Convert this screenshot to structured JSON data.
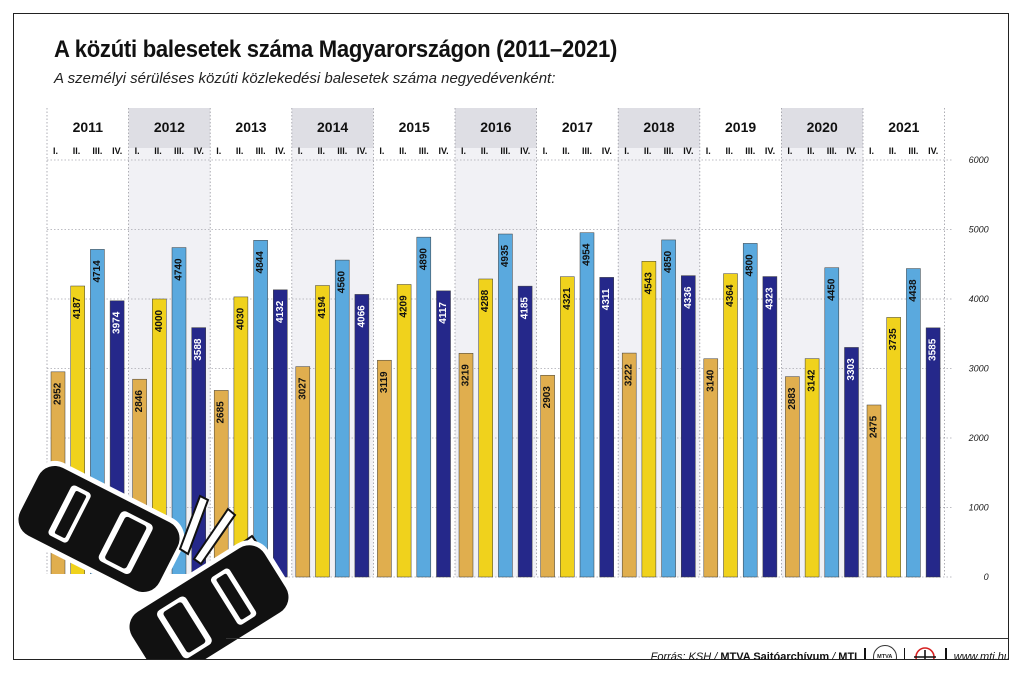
{
  "title": "A közúti balesetek száma Magyarországon (2011–2021)",
  "subtitle": "A személyi sérüléses közúti közlekedési balesetek száma negyedévenként:",
  "chart_data": {
    "type": "bar",
    "years": [
      "2011",
      "2012",
      "2013",
      "2014",
      "2015",
      "2016",
      "2017",
      "2018",
      "2019",
      "2020",
      "2021"
    ],
    "quarters": [
      "I.",
      "II.",
      "III.",
      "IV."
    ],
    "series": [
      {
        "name": "I.",
        "color": "#E0AE4E",
        "values": [
          2952,
          2846,
          2685,
          3027,
          3119,
          3219,
          2903,
          3222,
          3140,
          2883,
          2475
        ]
      },
      {
        "name": "II.",
        "color": "#F0D21C",
        "values": [
          4187,
          4000,
          4030,
          4194,
          4209,
          4288,
          4321,
          4543,
          4364,
          3142,
          3735
        ]
      },
      {
        "name": "III.",
        "color": "#5AA9DE",
        "values": [
          4714,
          4740,
          4844,
          4560,
          4890,
          4935,
          4954,
          4850,
          4800,
          4450,
          4438
        ]
      },
      {
        "name": "IV.",
        "color": "#25288A",
        "values": [
          3974,
          3588,
          4132,
          4066,
          4117,
          4185,
          4311,
          4336,
          4323,
          3303,
          3585
        ]
      }
    ],
    "y_ticks": [
      0,
      1000,
      2000,
      3000,
      4000,
      5000,
      6000
    ],
    "ylim": [
      0,
      6000
    ],
    "grid": true,
    "shaded_year_bands": [
      "2012",
      "2014",
      "2016",
      "2018",
      "2020"
    ]
  },
  "footer": {
    "source_prefix": "Forrás: KSH /",
    "archive": "MTVA Sajtóarchívum",
    "mti": "MTI",
    "badge": "MTVA",
    "url": "www.mti.hu"
  },
  "illustration": "car-crash-icon"
}
